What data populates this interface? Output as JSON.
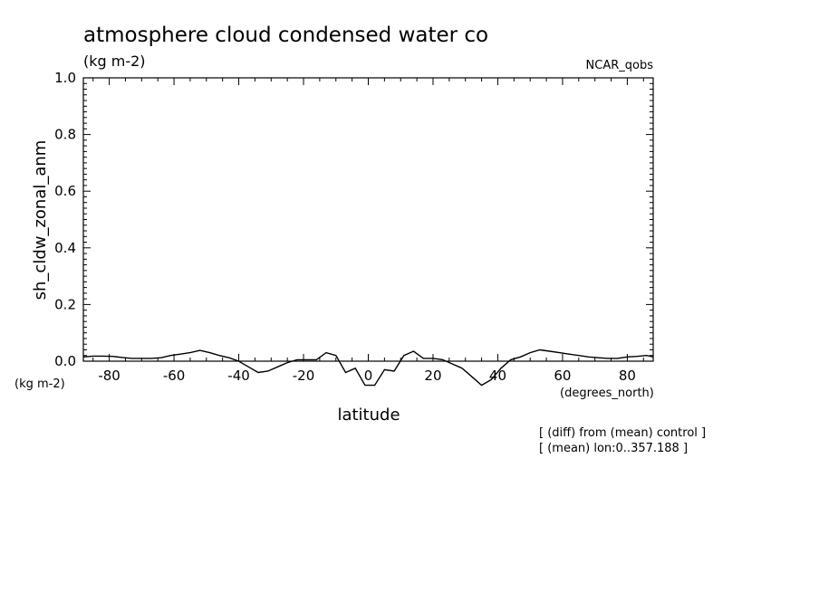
{
  "chart_data": {
    "type": "line",
    "title": "atmosphere cloud condensed water co",
    "subtitle": "(kg m-2)",
    "source_label": "NCAR_qobs",
    "xlabel": "latitude",
    "ylabel": "sh_cldw_zonal_anm",
    "y_unit_label": "(kg m-2)",
    "x_unit_label": "(degrees_north)",
    "xlim": [
      -88,
      88
    ],
    "ylim": [
      0.0,
      1.0
    ],
    "x_ticks": [
      -80,
      -60,
      -40,
      -20,
      0,
      20,
      40,
      60,
      80
    ],
    "x_tick_labels": [
      "-80",
      "-60",
      "-40",
      "-20",
      "0",
      "20",
      "40",
      "60",
      "80"
    ],
    "y_ticks": [
      0.0,
      0.2,
      0.4,
      0.6,
      0.8,
      1.0
    ],
    "y_tick_labels": [
      "0.0",
      "0.2",
      "0.4",
      "0.6",
      "0.8",
      "1.0"
    ],
    "notes": [
      "[ (diff) from (mean) control ]",
      "[ (mean) lon:0..357.188 ]"
    ],
    "series": [
      {
        "x": [
          -88,
          -85,
          -82,
          -79,
          -76,
          -73,
          -70,
          -67,
          -64,
          -61,
          -58,
          -55,
          -52,
          -49,
          -46,
          -43,
          -40,
          -37,
          -34,
          -31,
          -28,
          -25,
          -22,
          -19,
          -16,
          -13,
          -10,
          -7,
          -4,
          -1,
          2,
          5,
          8,
          11,
          14,
          17,
          20,
          23,
          26,
          29,
          32,
          35,
          38,
          41,
          44,
          47,
          50,
          53,
          56,
          59,
          62,
          65,
          68,
          71,
          74,
          77,
          80,
          83,
          86,
          88
        ],
        "y": [
          0.015,
          0.018,
          0.018,
          0.017,
          0.013,
          0.01,
          0.01,
          0.01,
          0.012,
          0.02,
          0.025,
          0.03,
          0.038,
          0.03,
          0.02,
          0.012,
          0.0,
          -0.02,
          -0.04,
          -0.035,
          -0.02,
          -0.005,
          0.005,
          0.005,
          0.005,
          0.03,
          0.02,
          -0.04,
          -0.025,
          -0.085,
          -0.085,
          -0.03,
          -0.035,
          0.02,
          0.035,
          0.01,
          0.01,
          0.005,
          -0.01,
          -0.025,
          -0.055,
          -0.085,
          -0.065,
          -0.025,
          0.005,
          0.015,
          0.03,
          0.04,
          0.035,
          0.03,
          0.025,
          0.02,
          0.015,
          0.012,
          0.01,
          0.01,
          0.015,
          0.017,
          0.02,
          0.015
        ]
      }
    ]
  }
}
